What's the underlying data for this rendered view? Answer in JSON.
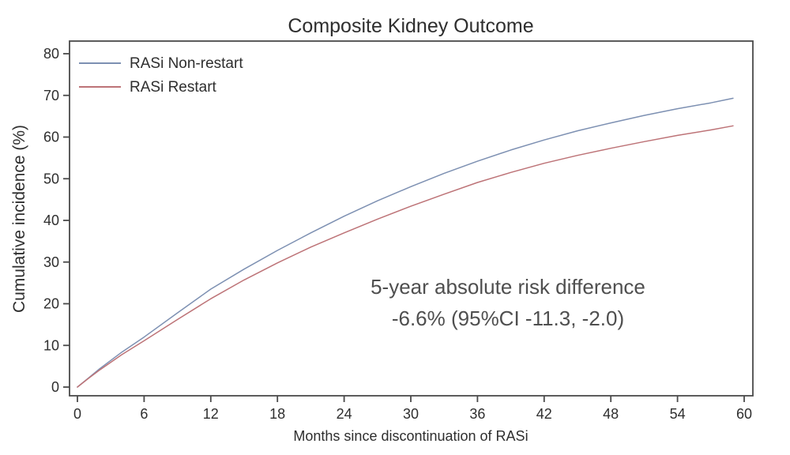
{
  "chart_data": {
    "type": "line",
    "title": "Composite Kidney Outcome",
    "xlabel": "Months since discontinuation of RASi",
    "ylabel": "Cumulative incidence (%)",
    "xlim": [
      0,
      60
    ],
    "ylim": [
      0,
      80
    ],
    "x_ticks": [
      0,
      6,
      12,
      18,
      24,
      30,
      36,
      42,
      48,
      54,
      60
    ],
    "y_ticks": [
      0,
      10,
      20,
      30,
      40,
      50,
      60,
      70,
      80
    ],
    "grid": false,
    "legend_position": "top-left-inside",
    "axis_color": "#4a4a4a",
    "text_color": "#2e2e2e",
    "annotation_color": "#4f4f4f",
    "series": [
      {
        "name": "RASi Non-restart",
        "color": "#7d90b2",
        "points": [
          [
            0,
            0
          ],
          [
            1,
            2.2
          ],
          [
            2,
            4.4
          ],
          [
            4,
            8.4
          ],
          [
            6,
            12.0
          ],
          [
            9,
            17.8
          ],
          [
            12,
            23.5
          ],
          [
            15,
            28.3
          ],
          [
            18,
            32.8
          ],
          [
            21,
            37.0
          ],
          [
            24,
            41.0
          ],
          [
            27,
            44.7
          ],
          [
            30,
            48.1
          ],
          [
            33,
            51.3
          ],
          [
            36,
            54.2
          ],
          [
            39,
            56.9
          ],
          [
            42,
            59.3
          ],
          [
            45,
            61.5
          ],
          [
            48,
            63.4
          ],
          [
            51,
            65.2
          ],
          [
            54,
            66.8
          ],
          [
            57,
            68.2
          ],
          [
            59,
            69.3
          ]
        ]
      },
      {
        "name": "RASi Restart",
        "color": "#bd7377",
        "points": [
          [
            0,
            0
          ],
          [
            1,
            2.1
          ],
          [
            2,
            4.1
          ],
          [
            4,
            7.8
          ],
          [
            6,
            11.1
          ],
          [
            9,
            16.2
          ],
          [
            12,
            21.2
          ],
          [
            15,
            25.7
          ],
          [
            18,
            29.8
          ],
          [
            21,
            33.6
          ],
          [
            24,
            37.0
          ],
          [
            27,
            40.3
          ],
          [
            30,
            43.4
          ],
          [
            33,
            46.3
          ],
          [
            36,
            49.1
          ],
          [
            39,
            51.5
          ],
          [
            42,
            53.7
          ],
          [
            45,
            55.6
          ],
          [
            48,
            57.3
          ],
          [
            51,
            58.9
          ],
          [
            54,
            60.4
          ],
          [
            57,
            61.7
          ],
          [
            59,
            62.7
          ]
        ]
      }
    ],
    "annotation": {
      "line1": "5-year absolute risk difference",
      "line2": "-6.6% (95%CI -11.3, -2.0)"
    }
  }
}
